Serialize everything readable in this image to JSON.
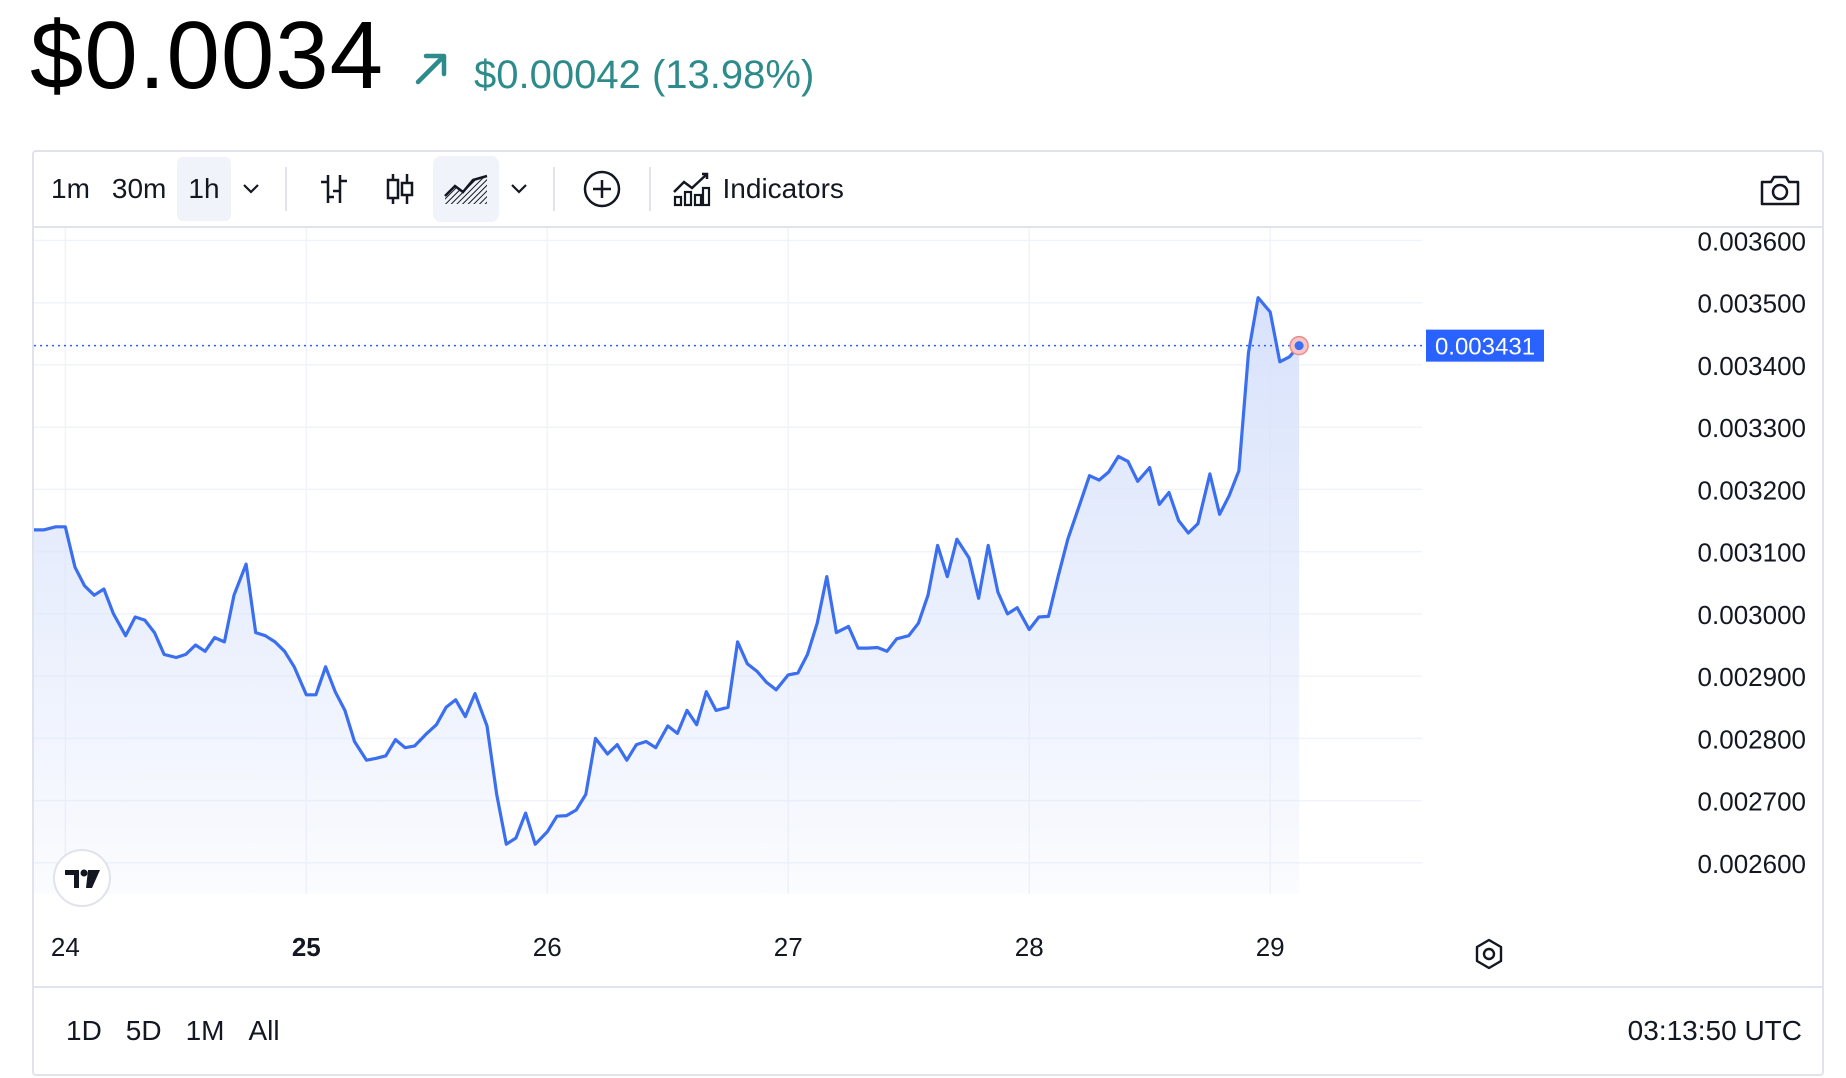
{
  "header": {
    "price": "$0.0034",
    "arrow_icon": "arrow-up-right-icon",
    "change": "$0.00042 (13.98%)",
    "change_color": "#2e8b8b"
  },
  "toolbar": {
    "intervals": [
      "1m",
      "30m",
      "1h"
    ],
    "active_interval": "1h",
    "indicators_label": "Indicators",
    "icons": [
      "chevron-down-icon",
      "bar-chart-icon",
      "candles-icon",
      "area-chart-icon",
      "chevron-down-icon",
      "add-compare-icon",
      "indicators-icon",
      "camera-icon"
    ],
    "active_chart_style": "area"
  },
  "footer": {
    "ranges": [
      "1D",
      "5D",
      "1M",
      "All"
    ],
    "time": "03:13:50 UTC"
  },
  "colors": {
    "line": "#3b6ff0",
    "fill": "#d8e2fb",
    "last_price_label_bg": "#2962ff",
    "grid": "#f0f3fa"
  },
  "logo_icon": "tradingview-logo-icon",
  "settings_icon": "settings-icon",
  "chart_data": {
    "type": "area",
    "x_labels": [
      "24",
      "25",
      "26",
      "27",
      "28",
      "29"
    ],
    "x_bold_labels": [
      "25"
    ],
    "y_ticks": [
      0.0026,
      0.0027,
      0.0028,
      0.0029,
      0.003,
      0.0031,
      0.0032,
      0.0033,
      0.0034,
      0.0035,
      0.0036
    ],
    "y_tick_labels": [
      "0.002600",
      "0.002700",
      "0.002800",
      "0.002900",
      "0.003000",
      "0.003100",
      "0.003200",
      "0.003300",
      "0.003400",
      "0.003500",
      "0.003600"
    ],
    "ylim": [
      0.00255,
      0.00362
    ],
    "xlim": [
      23.87,
      29.63
    ],
    "last_price": 0.003431,
    "last_price_label": "0.003431",
    "series": [
      {
        "points": [
          [
            23.87,
            0.003135
          ],
          [
            23.91,
            0.003135
          ],
          [
            23.96,
            0.00314
          ],
          [
            24.0,
            0.00314
          ],
          [
            24.04,
            0.003075
          ],
          [
            24.08,
            0.003045
          ],
          [
            24.12,
            0.00303
          ],
          [
            24.16,
            0.00304
          ],
          [
            24.2,
            0.003
          ],
          [
            24.25,
            0.002965
          ],
          [
            24.29,
            0.002995
          ],
          [
            24.33,
            0.00299
          ],
          [
            24.37,
            0.00297
          ],
          [
            24.41,
            0.002935
          ],
          [
            24.46,
            0.00293
          ],
          [
            24.5,
            0.002935
          ],
          [
            24.54,
            0.00295
          ],
          [
            24.58,
            0.00294
          ],
          [
            24.62,
            0.002962
          ],
          [
            24.66,
            0.002955
          ],
          [
            24.7,
            0.00303
          ],
          [
            24.75,
            0.00308
          ],
          [
            24.79,
            0.00297
          ],
          [
            24.83,
            0.002965
          ],
          [
            24.87,
            0.002955
          ],
          [
            24.91,
            0.00294
          ],
          [
            24.95,
            0.002915
          ],
          [
            25.0,
            0.00287
          ],
          [
            25.04,
            0.00287
          ],
          [
            25.08,
            0.002915
          ],
          [
            25.12,
            0.002875
          ],
          [
            25.16,
            0.002845
          ],
          [
            25.2,
            0.002795
          ],
          [
            25.25,
            0.002765
          ],
          [
            25.29,
            0.002768
          ],
          [
            25.33,
            0.002772
          ],
          [
            25.37,
            0.002798
          ],
          [
            25.41,
            0.002785
          ],
          [
            25.45,
            0.002788
          ],
          [
            25.5,
            0.002808
          ],
          [
            25.54,
            0.002822
          ],
          [
            25.58,
            0.00285
          ],
          [
            25.62,
            0.002862
          ],
          [
            25.66,
            0.002835
          ],
          [
            25.7,
            0.002872
          ],
          [
            25.75,
            0.00282
          ],
          [
            25.79,
            0.00271
          ],
          [
            25.83,
            0.00263
          ],
          [
            25.87,
            0.00264
          ],
          [
            25.91,
            0.00268
          ],
          [
            25.95,
            0.00263
          ],
          [
            26.0,
            0.00265
          ],
          [
            26.04,
            0.002675
          ],
          [
            26.08,
            0.002676
          ],
          [
            26.12,
            0.002685
          ],
          [
            26.16,
            0.00271
          ],
          [
            26.2,
            0.0028
          ],
          [
            26.25,
            0.002775
          ],
          [
            26.29,
            0.00279
          ],
          [
            26.33,
            0.002765
          ],
          [
            26.37,
            0.00279
          ],
          [
            26.41,
            0.002795
          ],
          [
            26.45,
            0.002785
          ],
          [
            26.5,
            0.00282
          ],
          [
            26.54,
            0.002808
          ],
          [
            26.58,
            0.002845
          ],
          [
            26.62,
            0.002822
          ],
          [
            26.66,
            0.002875
          ],
          [
            26.7,
            0.002845
          ],
          [
            26.75,
            0.00285
          ],
          [
            26.79,
            0.002955
          ],
          [
            26.83,
            0.00292
          ],
          [
            26.87,
            0.002908
          ],
          [
            26.91,
            0.00289
          ],
          [
            26.95,
            0.002878
          ],
          [
            27.0,
            0.002902
          ],
          [
            27.04,
            0.002905
          ],
          [
            27.08,
            0.002935
          ],
          [
            27.12,
            0.002985
          ],
          [
            27.16,
            0.00306
          ],
          [
            27.2,
            0.00297
          ],
          [
            27.25,
            0.00298
          ],
          [
            27.29,
            0.002945
          ],
          [
            27.33,
            0.002945
          ],
          [
            27.37,
            0.002946
          ],
          [
            27.41,
            0.00294
          ],
          [
            27.45,
            0.00296
          ],
          [
            27.5,
            0.002965
          ],
          [
            27.54,
            0.002985
          ],
          [
            27.58,
            0.00303
          ],
          [
            27.62,
            0.00311
          ],
          [
            27.66,
            0.00306
          ],
          [
            27.7,
            0.00312
          ],
          [
            27.75,
            0.00309
          ],
          [
            27.79,
            0.003025
          ],
          [
            27.83,
            0.00311
          ],
          [
            27.87,
            0.003035
          ],
          [
            27.91,
            0.003
          ],
          [
            27.95,
            0.00301
          ],
          [
            28.0,
            0.002975
          ],
          [
            28.04,
            0.002995
          ],
          [
            28.08,
            0.002996
          ],
          [
            28.12,
            0.00306
          ],
          [
            28.16,
            0.00312
          ],
          [
            28.2,
            0.003165
          ],
          [
            28.25,
            0.003222
          ],
          [
            28.29,
            0.003215
          ],
          [
            28.33,
            0.003228
          ],
          [
            28.37,
            0.003253
          ],
          [
            28.41,
            0.003245
          ],
          [
            28.45,
            0.003213
          ],
          [
            28.5,
            0.003235
          ],
          [
            28.54,
            0.003176
          ],
          [
            28.58,
            0.003195
          ],
          [
            28.62,
            0.00315
          ],
          [
            28.66,
            0.00313
          ],
          [
            28.7,
            0.003145
          ],
          [
            28.75,
            0.003225
          ],
          [
            28.79,
            0.00316
          ],
          [
            28.83,
            0.00319
          ],
          [
            28.87,
            0.00323
          ],
          [
            28.91,
            0.00342
          ],
          [
            28.95,
            0.003508
          ],
          [
            29.0,
            0.003485
          ],
          [
            29.04,
            0.003405
          ],
          [
            29.08,
            0.003413
          ],
          [
            29.12,
            0.003431
          ]
        ]
      }
    ]
  }
}
